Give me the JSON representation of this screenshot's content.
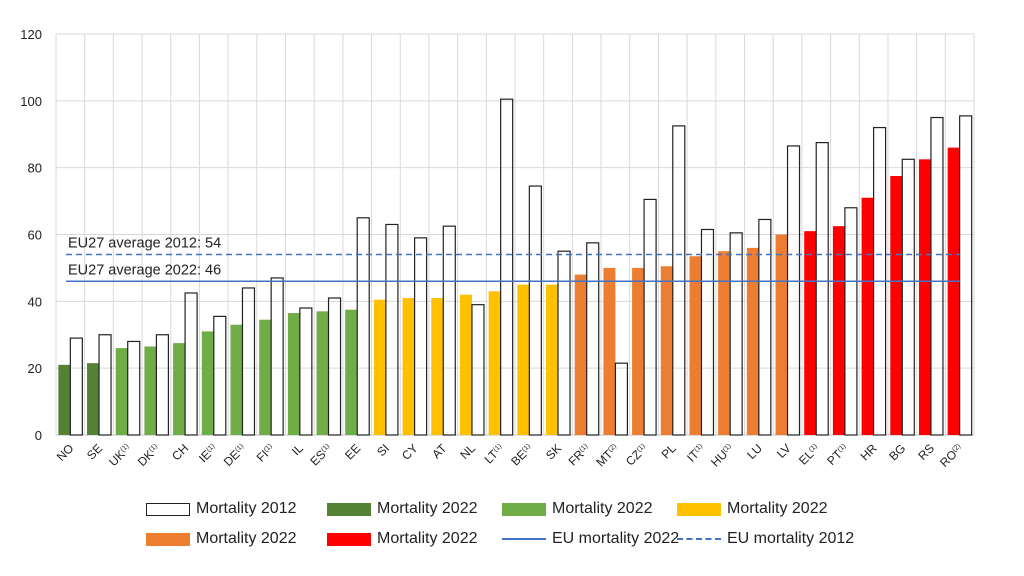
{
  "chart_data": {
    "type": "bar",
    "ylim": [
      0,
      120
    ],
    "yticks": [
      0,
      20,
      40,
      60,
      80,
      100,
      120
    ],
    "grid": true,
    "categories": [
      {
        "code": "NO",
        "sup": ""
      },
      {
        "code": "SE",
        "sup": ""
      },
      {
        "code": "UK",
        "sup": "(1)"
      },
      {
        "code": "DK",
        "sup": "(1)"
      },
      {
        "code": "CH",
        "sup": ""
      },
      {
        "code": "IE",
        "sup": "(1)"
      },
      {
        "code": "DE",
        "sup": "(1)"
      },
      {
        "code": "FI",
        "sup": "(1)"
      },
      {
        "code": "IL",
        "sup": ""
      },
      {
        "code": "ES",
        "sup": "(1)"
      },
      {
        "code": "EE",
        "sup": ""
      },
      {
        "code": "SI",
        "sup": ""
      },
      {
        "code": "CY",
        "sup": ""
      },
      {
        "code": "AT",
        "sup": ""
      },
      {
        "code": "NL",
        "sup": ""
      },
      {
        "code": "LT",
        "sup": "(1)"
      },
      {
        "code": "BE",
        "sup": "(1)"
      },
      {
        "code": "SK",
        "sup": ""
      },
      {
        "code": "FR",
        "sup": "(1)"
      },
      {
        "code": "MT",
        "sup": "(2)"
      },
      {
        "code": "CZ",
        "sup": "(1)"
      },
      {
        "code": "PL",
        "sup": ""
      },
      {
        "code": "IT",
        "sup": "(1)"
      },
      {
        "code": "HU",
        "sup": "(1)"
      },
      {
        "code": "LU",
        "sup": ""
      },
      {
        "code": "LV",
        "sup": ""
      },
      {
        "code": "EL",
        "sup": "(1)"
      },
      {
        "code": "PT",
        "sup": "(1)"
      },
      {
        "code": "HR",
        "sup": ""
      },
      {
        "code": "BG",
        "sup": ""
      },
      {
        "code": "RS",
        "sup": ""
      },
      {
        "code": "RO",
        "sup": "(2)"
      }
    ],
    "series": [
      {
        "name": "Mortality 2012",
        "style": "outline",
        "values": [
          29,
          30,
          28,
          30,
          42.5,
          35.5,
          44,
          47,
          38,
          41,
          65,
          63,
          59,
          62.5,
          39,
          100.5,
          74.5,
          55,
          57.5,
          21.5,
          70.5,
          92.5,
          61.5,
          60.5,
          64.5,
          86.5,
          87.5,
          68,
          92,
          82.5,
          95,
          95.5
        ]
      },
      {
        "name": "Mortality 2022",
        "style": "fill",
        "values": [
          21,
          21.5,
          26,
          26.5,
          27.5,
          31,
          33,
          34.5,
          36.5,
          37,
          37.5,
          40.5,
          41,
          41,
          42,
          43,
          45,
          45,
          48,
          50,
          50,
          50.5,
          53.5,
          55,
          56,
          60,
          61,
          62.5,
          71,
          77.5,
          82.5,
          86
        ]
      }
    ],
    "bar_group_colors": [
      "#548235",
      "#548235",
      "#70AD47",
      "#70AD47",
      "#70AD47",
      "#70AD47",
      "#70AD47",
      "#70AD47",
      "#70AD47",
      "#70AD47",
      "#70AD47",
      "#FFC000",
      "#FFC000",
      "#FFC000",
      "#FFC000",
      "#FFC000",
      "#FFC000",
      "#FFC000",
      "#ED7D31",
      "#ED7D31",
      "#ED7D31",
      "#ED7D31",
      "#ED7D31",
      "#ED7D31",
      "#ED7D31",
      "#ED7D31",
      "#FF0000",
      "#FF0000",
      "#FF0000",
      "#FF0000",
      "#FF0000",
      "#FF0000"
    ],
    "reference_lines": [
      {
        "name": "EU mortality 2022",
        "value": 46,
        "style": "solid",
        "color": "#4472C4",
        "label": "EU27 average 2022: 46"
      },
      {
        "name": "EU mortality 2012",
        "value": 54,
        "style": "dashed",
        "color": "#4472C4",
        "label": "EU27 average 2012: 54"
      }
    ]
  },
  "legend": {
    "items": [
      {
        "label": "Mortality 2012",
        "kind": "outline",
        "color": "#ffffff"
      },
      {
        "label": "Mortality 2022",
        "kind": "fill",
        "color": "#548235"
      },
      {
        "label": "Mortality 2022",
        "kind": "fill",
        "color": "#70AD47"
      },
      {
        "label": "Mortality 2022",
        "kind": "fill",
        "color": "#FFC000"
      },
      {
        "label": "Mortality 2022",
        "kind": "fill",
        "color": "#ED7D31"
      },
      {
        "label": "Mortality 2022",
        "kind": "fill",
        "color": "#FF0000"
      },
      {
        "label": "EU mortality 2022",
        "kind": "line",
        "color": "#4472C4"
      },
      {
        "label": "EU mortality 2012",
        "kind": "dash",
        "color": "#4472C4"
      }
    ]
  },
  "colors": {
    "grid": "#d9d9d9",
    "axis": "#bfbfbf",
    "outline": "#222222",
    "ref": "#4472C4"
  }
}
